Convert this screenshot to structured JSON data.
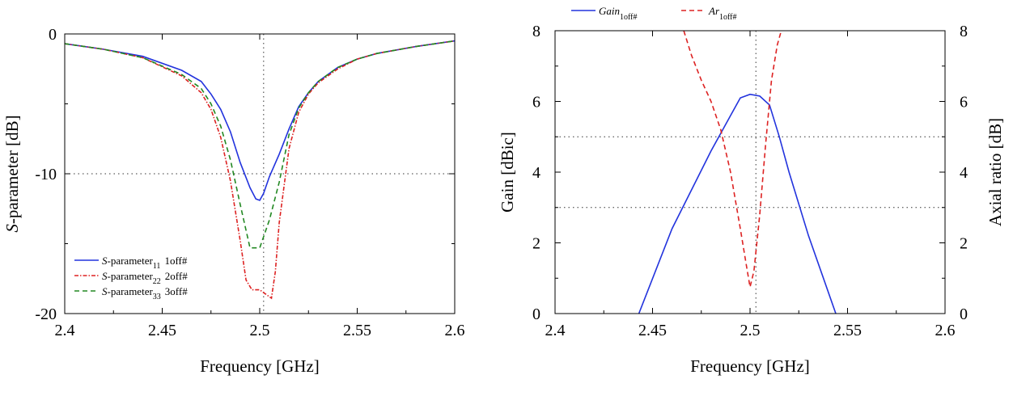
{
  "chart_data": [
    {
      "type": "line",
      "xlabel": "Frequency [GHz]",
      "ylabel": "S-parameter [dB]",
      "ylabel_italic_prefix": "S",
      "ylabel_rest": "-parameter [dB]",
      "xlim": [
        2.4,
        2.6
      ],
      "ylim": [
        -20,
        0
      ],
      "x_ticks": [
        "2.4",
        "2.45",
        "2.5",
        "2.55",
        "2.6"
      ],
      "y_ticks": [
        "0",
        "-10",
        "-20"
      ],
      "y_tick_values": [
        0,
        -10,
        -20
      ],
      "x_tick_values": [
        2.4,
        2.45,
        2.5,
        2.55,
        2.6
      ],
      "reference_lines": {
        "vertical_x": 2.502,
        "horizontal_y": -10
      },
      "legend_position": "bottom-left",
      "series": [
        {
          "name": "S-parameter11 1off#",
          "legend": {
            "italic": "S",
            "text": "-parameter",
            "sub": "11",
            "suffix": "1off#"
          },
          "color": "#2233dd",
          "style": "solid",
          "x": [
            2.4,
            2.42,
            2.44,
            2.46,
            2.47,
            2.475,
            2.48,
            2.485,
            2.49,
            2.495,
            2.498,
            2.5,
            2.502,
            2.505,
            2.51,
            2.515,
            2.52,
            2.525,
            2.53,
            2.54,
            2.55,
            2.56,
            2.58,
            2.6
          ],
          "values": [
            -0.7,
            -1.1,
            -1.6,
            -2.6,
            -3.4,
            -4.3,
            -5.4,
            -7.0,
            -9.2,
            -11.0,
            -11.8,
            -11.9,
            -11.4,
            -10.2,
            -8.6,
            -6.8,
            -5.2,
            -4.2,
            -3.4,
            -2.4,
            -1.8,
            -1.4,
            -0.9,
            -0.5
          ]
        },
        {
          "name": "S-parameter22 2off#",
          "legend": {
            "italic": "S",
            "text": "-parameter",
            "sub": "22",
            "suffix": "2off#"
          },
          "color": "#dd2222",
          "style": "dash-dot",
          "x": [
            2.4,
            2.42,
            2.44,
            2.46,
            2.47,
            2.475,
            2.48,
            2.485,
            2.49,
            2.493,
            2.496,
            2.5,
            2.503,
            2.506,
            2.508,
            2.51,
            2.515,
            2.52,
            2.525,
            2.53,
            2.54,
            2.55,
            2.56,
            2.58,
            2.6
          ],
          "values": [
            -0.7,
            -1.1,
            -1.7,
            -3.0,
            -4.2,
            -5.4,
            -7.4,
            -10.5,
            -14.8,
            -17.6,
            -18.3,
            -18.3,
            -18.6,
            -18.9,
            -17.0,
            -13.5,
            -8.2,
            -5.6,
            -4.3,
            -3.5,
            -2.5,
            -1.8,
            -1.4,
            -0.9,
            -0.5
          ]
        },
        {
          "name": "S-parameter33 3off#",
          "legend": {
            "italic": "S",
            "text": "-parameter",
            "sub": "33",
            "suffix": "3off#"
          },
          "color": "#228822",
          "style": "dashed",
          "x": [
            2.4,
            2.42,
            2.44,
            2.46,
            2.47,
            2.475,
            2.48,
            2.485,
            2.49,
            2.495,
            2.5,
            2.505,
            2.51,
            2.515,
            2.52,
            2.525,
            2.53,
            2.54,
            2.55,
            2.56,
            2.58,
            2.6
          ],
          "values": [
            -0.7,
            -1.1,
            -1.7,
            -2.9,
            -3.9,
            -5.0,
            -6.6,
            -9.0,
            -12.2,
            -15.3,
            -15.3,
            -13.3,
            -10.6,
            -7.2,
            -5.3,
            -4.2,
            -3.4,
            -2.4,
            -1.8,
            -1.4,
            -0.9,
            -0.5
          ]
        }
      ]
    },
    {
      "type": "line",
      "xlabel": "Frequency [GHz]",
      "ylabel": "Gain [dBic]",
      "y2label": "Axial ratio [dB]",
      "xlim": [
        2.4,
        2.6
      ],
      "ylim": [
        0,
        8
      ],
      "y2lim": [
        0,
        8
      ],
      "x_ticks": [
        "2.4",
        "2.45",
        "2.5",
        "2.55",
        "2.6"
      ],
      "x_tick_values": [
        2.4,
        2.45,
        2.5,
        2.55,
        2.6
      ],
      "y_ticks": [
        "0",
        "2",
        "4",
        "6",
        "8"
      ],
      "y_tick_values": [
        0,
        2,
        4,
        6,
        8
      ],
      "y2_ticks": [
        "0",
        "2",
        "4",
        "6",
        "8"
      ],
      "reference_lines": {
        "vertical_x": 2.503,
        "horizontal_y": [
          5,
          3
        ]
      },
      "legend_position": "top",
      "series": [
        {
          "name": "Gain1off#",
          "legend": {
            "italic": "Gain",
            "sub": "1off#"
          },
          "axis": "left",
          "color": "#2233dd",
          "style": "solid",
          "x": [
            2.443,
            2.46,
            2.48,
            2.49,
            2.495,
            2.5,
            2.505,
            2.51,
            2.515,
            2.52,
            2.53,
            2.544
          ],
          "values": [
            0.0,
            2.4,
            4.6,
            5.6,
            6.1,
            6.2,
            6.15,
            5.9,
            5.0,
            4.0,
            2.2,
            0.0
          ]
        },
        {
          "name": "Ar1off#",
          "legend": {
            "italic": "Ar",
            "sub": "1off#"
          },
          "axis": "right",
          "color": "#dd2222",
          "style": "dashed",
          "x": [
            2.466,
            2.47,
            2.475,
            2.48,
            2.485,
            2.49,
            2.495,
            2.498,
            2.5,
            2.502,
            2.505,
            2.508,
            2.511,
            2.514,
            2.516
          ],
          "values": [
            8.0,
            7.3,
            6.6,
            6.0,
            5.2,
            4.0,
            2.4,
            1.4,
            0.75,
            1.2,
            2.8,
            4.8,
            6.6,
            7.6,
            8.0
          ]
        }
      ]
    }
  ]
}
